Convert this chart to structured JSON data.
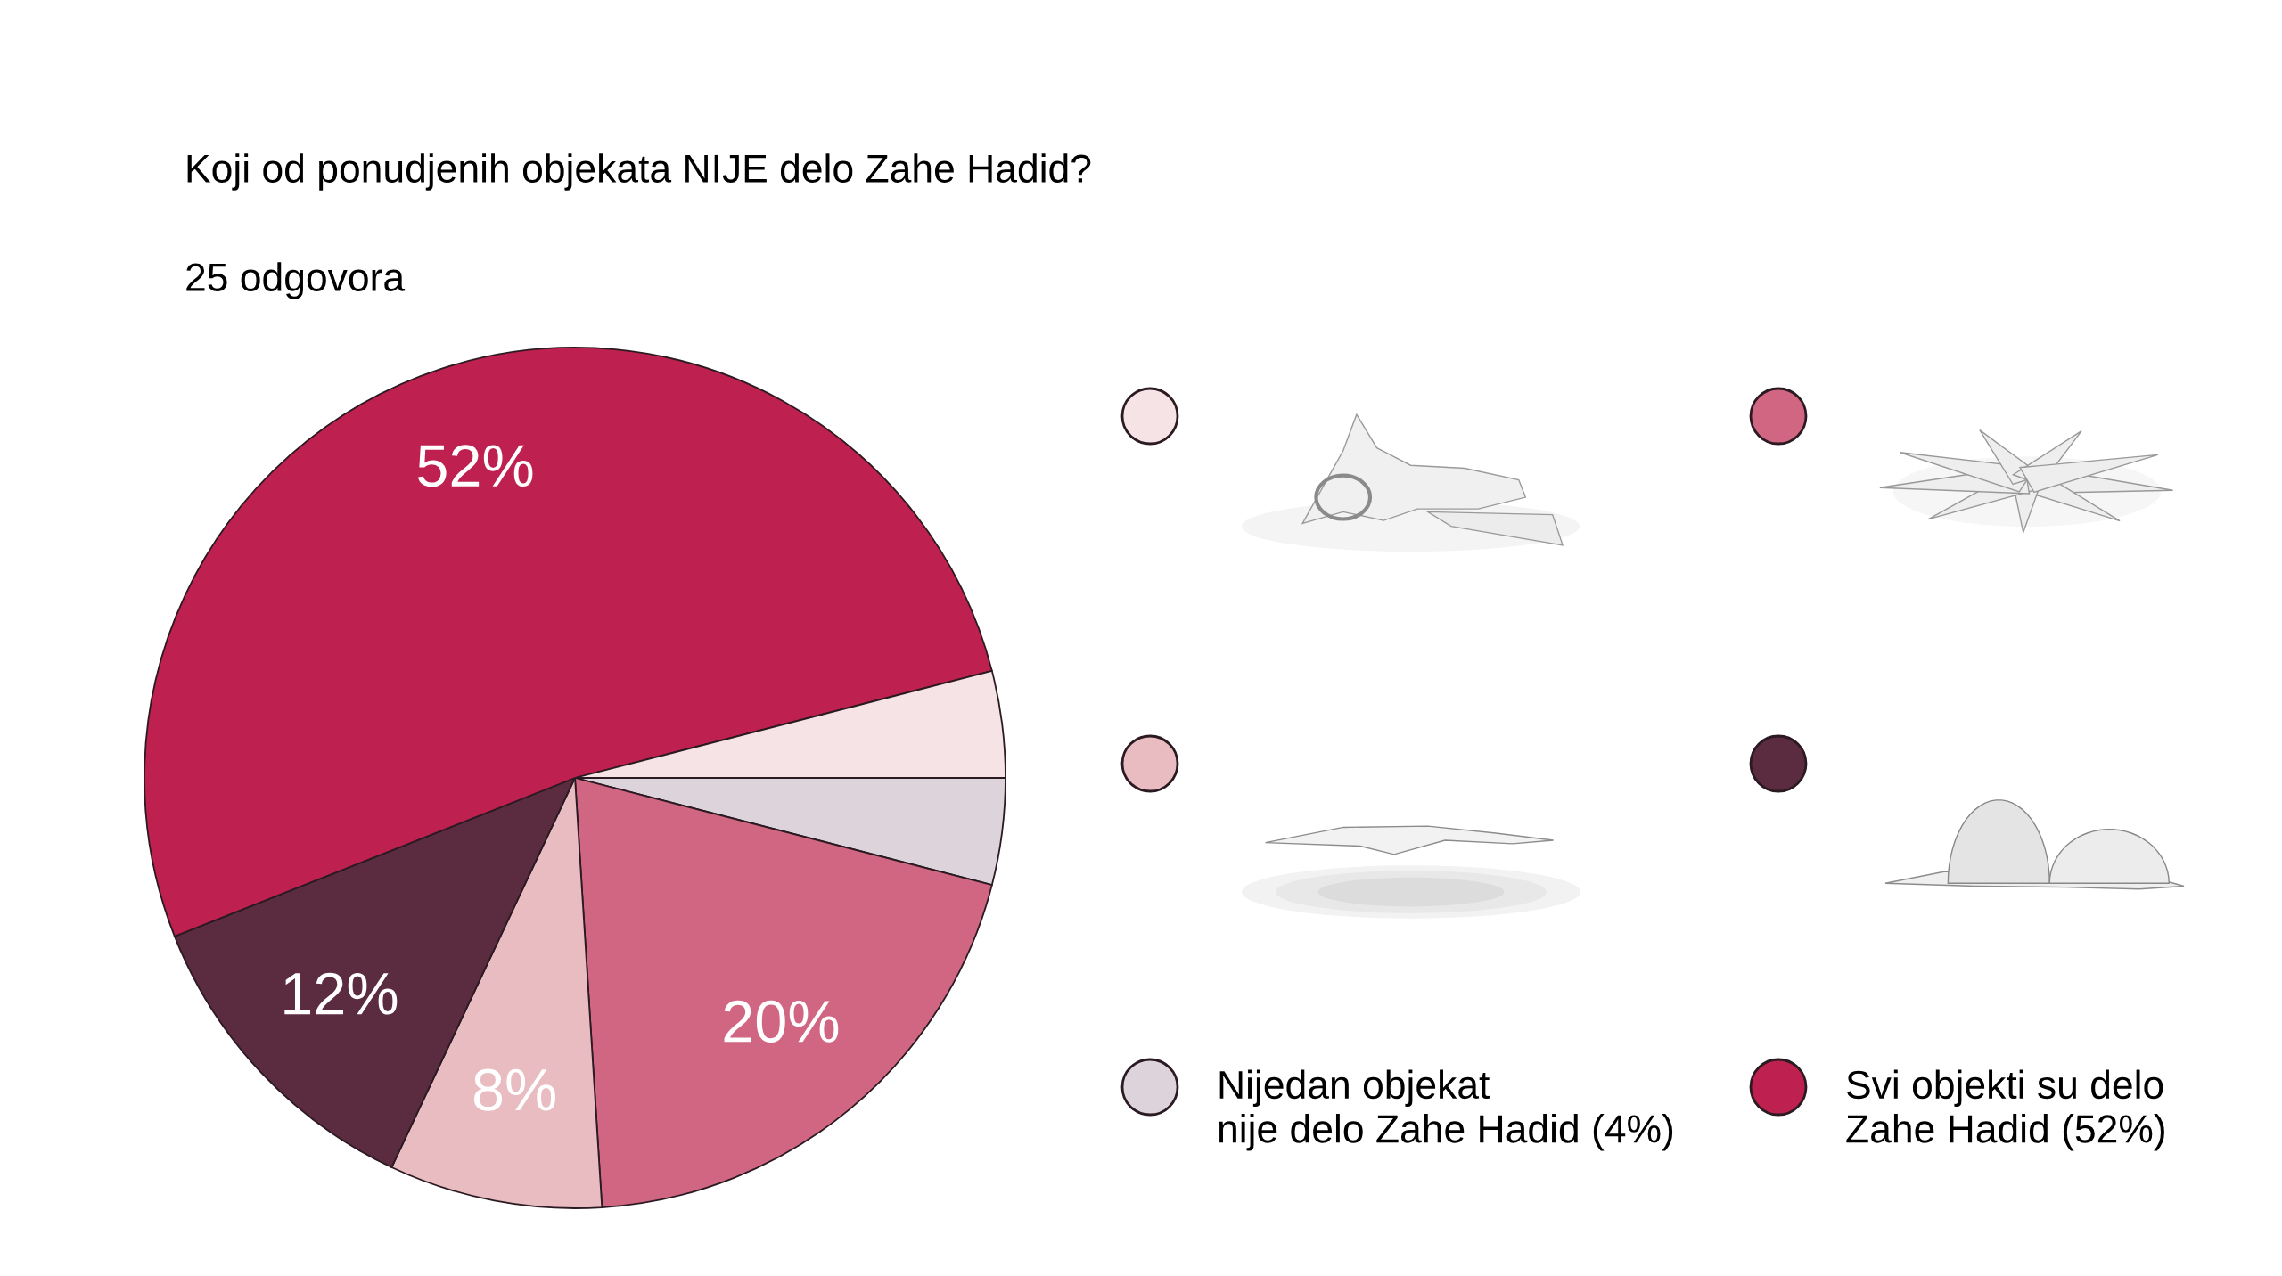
{
  "chart_data": {
    "type": "pie",
    "title": "Koji od ponudjenih objekata NIJE delo Zahe Hadid?",
    "subtitle": "25 odgovora",
    "categories": [
      "Nijedan objekat\nnije delo Zahe Hadid (4%)",
      null,
      null,
      null,
      "Svi objekti su delo\nZahe Hadid (52%)",
      null
    ],
    "values": [
      4,
      20,
      8,
      12,
      52,
      4
    ],
    "colors": [
      "#dcd4da",
      "#d16683",
      "#e8bcc0",
      "#5b2b40",
      "#be2050",
      "#f6e3e6"
    ],
    "value_labels": [
      null,
      "20%",
      "8%",
      "12%",
      "52%",
      null
    ],
    "legend": "right"
  }
}
